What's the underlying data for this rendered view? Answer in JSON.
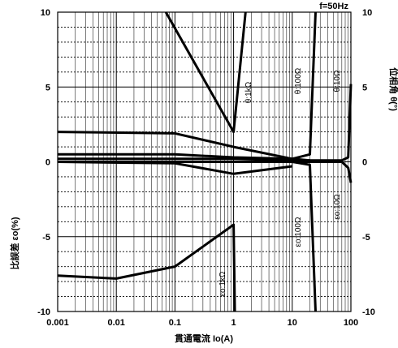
{
  "chart_data": {
    "type": "line",
    "x_scale": "log",
    "xlim": [
      0.001,
      100
    ],
    "ylim_left": [
      -10,
      10
    ],
    "ylim_right": [
      -10,
      10
    ],
    "x_ticks": [
      "0.001",
      "0.01",
      "0.1",
      "1",
      "10",
      "100"
    ],
    "y_left_ticks": [
      "10",
      "5",
      "0",
      "-5",
      "-10"
    ],
    "y_right_ticks": [
      "10",
      "5",
      "0",
      "-5",
      "-10"
    ],
    "xlabel": "貫通電流 Io(A)",
    "ylabel_left": "比誤差 εo(%)",
    "ylabel_right": "位相角 θ(°)",
    "corner_label": "f=50Hz",
    "grid": "log-major-minor",
    "series": [
      {
        "label": "θ:1kΩ",
        "axis": "right",
        "points": [
          [
            0.07,
            10
          ],
          [
            1,
            2
          ],
          [
            1.6,
            10
          ]
        ]
      },
      {
        "label": "θ:100Ω",
        "axis": "right",
        "points": [
          [
            0.001,
            0.5
          ],
          [
            0.1,
            0.5
          ],
          [
            1,
            0.3
          ],
          [
            10,
            0.2
          ],
          [
            20,
            0.5
          ],
          [
            25,
            10
          ]
        ]
      },
      {
        "label": "θ:10Ω",
        "axis": "right",
        "points": [
          [
            0.001,
            0.2
          ],
          [
            1,
            0.2
          ],
          [
            10,
            0.1
          ],
          [
            70,
            0.1
          ],
          [
            90,
            0.3
          ],
          [
            100,
            5.2
          ]
        ]
      },
      {
        "label": "",
        "axis": "left",
        "points": [
          [
            0.001,
            2
          ],
          [
            0.1,
            1.9
          ],
          [
            1,
            1
          ],
          [
            10,
            0.2
          ],
          [
            20,
            0.1
          ]
        ]
      },
      {
        "label": "",
        "axis": "left",
        "points": [
          [
            0.001,
            0
          ],
          [
            0.1,
            -0.1
          ],
          [
            1,
            -0.8
          ],
          [
            10,
            -0.3
          ]
        ]
      },
      {
        "label": "εo:1kΩ",
        "axis": "left",
        "points": [
          [
            0.001,
            -7.6
          ],
          [
            0.01,
            -7.8
          ],
          [
            0.1,
            -7
          ],
          [
            1,
            -4.2
          ],
          [
            1.05,
            -10
          ]
        ]
      },
      {
        "label": "εo:100Ω",
        "axis": "left",
        "points": [
          [
            0.001,
            0
          ],
          [
            1,
            0
          ],
          [
            10,
            0
          ],
          [
            20,
            -0.2
          ],
          [
            25,
            -10
          ]
        ]
      },
      {
        "label": "εo:10Ω",
        "axis": "left",
        "points": [
          [
            0.001,
            0
          ],
          [
            10,
            0
          ],
          [
            70,
            0
          ],
          [
            90,
            -0.4
          ],
          [
            100,
            -1.4
          ]
        ]
      }
    ]
  }
}
